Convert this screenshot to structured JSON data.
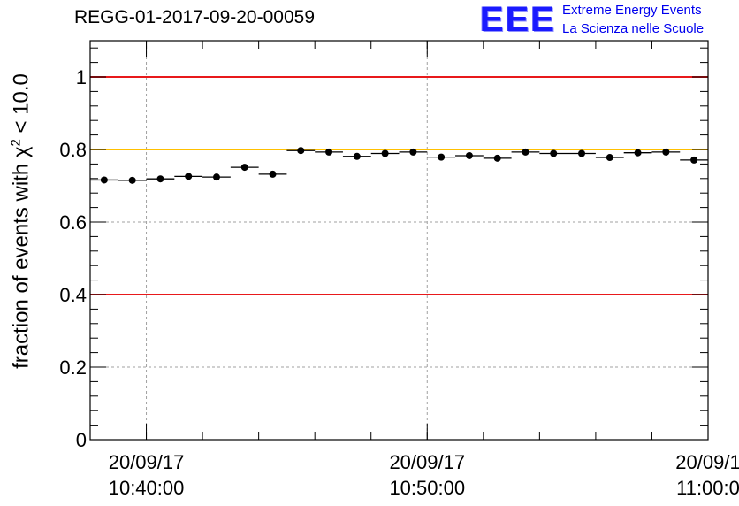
{
  "header": {
    "title": "REGG-01-2017-09-20-00059",
    "logo_text": "EEE",
    "logo_line1": "Extreme Energy Events",
    "logo_line2": "La Scienza nelle Scuole"
  },
  "chart_data": {
    "type": "scatter",
    "title": "REGG-01-2017-09-20-00059",
    "xlabel": "",
    "ylabel_main": "fraction of events with χ",
    "ylabel_sup": "2",
    "ylabel_tail": " < 10.0",
    "ylim": [
      0,
      1.1
    ],
    "xlim_minutes": [
      -8.0,
      14.0
    ],
    "grid": true,
    "yticks": [
      {
        "value": 0,
        "label": "0"
      },
      {
        "value": 0.2,
        "label": "0.2"
      },
      {
        "value": 0.4,
        "label": "0.4"
      },
      {
        "value": 0.6,
        "label": "0.6"
      },
      {
        "value": 0.8,
        "label": "0.8"
      },
      {
        "value": 1,
        "label": "1"
      }
    ],
    "xticks": [
      {
        "minute": -6,
        "date": "20/09/17",
        "time": "10:40:00"
      },
      {
        "minute": 4,
        "date": "20/09/17",
        "time": "10:50:00"
      },
      {
        "minute": 14,
        "date": "20/09/1",
        "time": "11:00:0"
      }
    ],
    "reference_lines": [
      {
        "y": 1.0,
        "color": "#e8191b"
      },
      {
        "y": 0.8,
        "color": "#ffc000"
      },
      {
        "y": 0.4,
        "color": "#e8191b"
      }
    ],
    "bin_width_minutes": 1.0,
    "series": [
      {
        "name": "fraction",
        "x_minutes": [
          -7.5,
          -6.5,
          -5.5,
          -4.5,
          -3.5,
          -2.5,
          -1.5,
          -0.5,
          0.5,
          1.5,
          2.5,
          3.5,
          4.5,
          5.5,
          6.5,
          7.5,
          8.5,
          9.5,
          10.5,
          11.5,
          12.5,
          13.5
        ],
        "values": [
          0.716,
          0.715,
          0.719,
          0.726,
          0.724,
          0.751,
          0.732,
          0.797,
          0.793,
          0.781,
          0.789,
          0.793,
          0.779,
          0.783,
          0.776,
          0.793,
          0.789,
          0.789,
          0.778,
          0.791,
          0.793,
          0.771
        ]
      }
    ]
  }
}
